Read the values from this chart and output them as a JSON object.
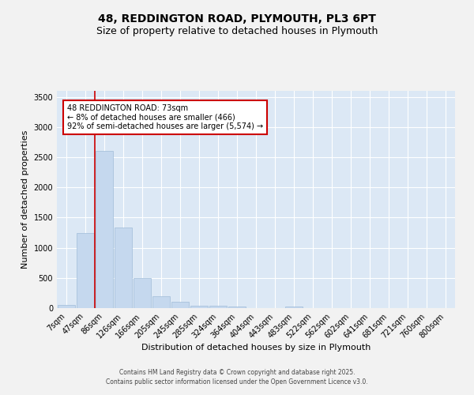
{
  "title_line1": "48, REDDINGTON ROAD, PLYMOUTH, PL3 6PT",
  "title_line2": "Size of property relative to detached houses in Plymouth",
  "xlabel": "Distribution of detached houses by size in Plymouth",
  "ylabel": "Number of detached properties",
  "background_color": "#dce8f5",
  "fig_background_color": "#f2f2f2",
  "bar_color": "#c5d8ee",
  "bar_edge_color": "#a0bcd8",
  "grid_color": "#ffffff",
  "categories": [
    "7sqm",
    "47sqm",
    "86sqm",
    "126sqm",
    "166sqm",
    "205sqm",
    "245sqm",
    "285sqm",
    "324sqm",
    "364sqm",
    "404sqm",
    "443sqm",
    "483sqm",
    "522sqm",
    "562sqm",
    "602sqm",
    "641sqm",
    "681sqm",
    "721sqm",
    "760sqm",
    "800sqm"
  ],
  "values": [
    50,
    1240,
    2600,
    1340,
    500,
    195,
    105,
    45,
    35,
    30,
    0,
    0,
    30,
    0,
    0,
    0,
    0,
    0,
    0,
    0,
    0
  ],
  "ylim": [
    0,
    3600
  ],
  "yticks": [
    0,
    500,
    1000,
    1500,
    2000,
    2500,
    3000,
    3500
  ],
  "annotation_text": "48 REDDINGTON ROAD: 73sqm\n← 8% of detached houses are smaller (466)\n92% of semi-detached houses are larger (5,574) →",
  "annotation_box_color": "#ffffff",
  "annotation_box_edge_color": "#cc0000",
  "red_line_color": "#cc0000",
  "footer_line1": "Contains HM Land Registry data © Crown copyright and database right 2025.",
  "footer_line2": "Contains public sector information licensed under the Open Government Licence v3.0.",
  "title_fontsize": 10,
  "subtitle_fontsize": 9,
  "tick_fontsize": 7,
  "ylabel_fontsize": 8,
  "xlabel_fontsize": 8,
  "footer_fontsize": 5.5
}
